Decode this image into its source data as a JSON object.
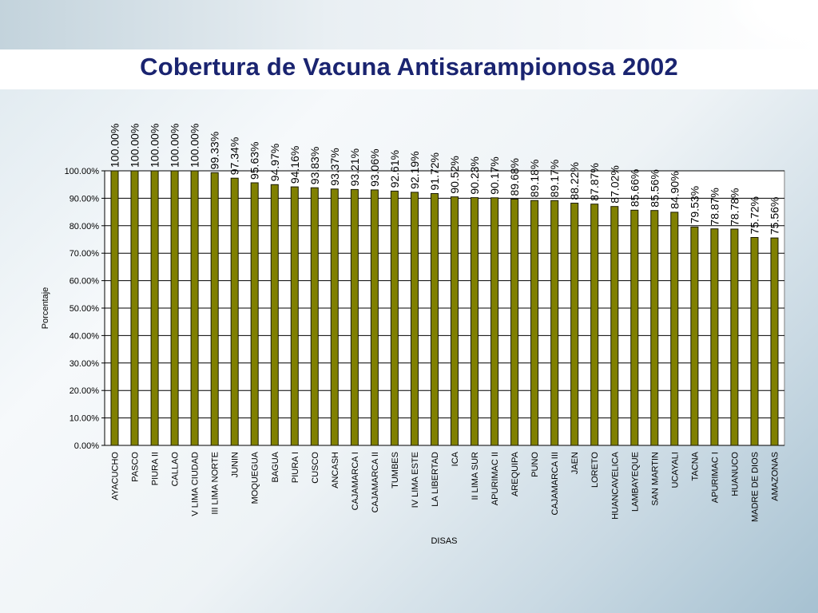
{
  "slide": {
    "title": "Cobertura de Vacuna Antisarampionosa 2002"
  },
  "colors": {
    "bar_fill": "#808000",
    "bar_stroke": "#1a1a00",
    "plot_bg": "#ffffff",
    "grid": "#000000",
    "title": "#1a2470"
  },
  "chart_data": {
    "type": "bar",
    "title": "Cobertura de Vacuna Antisarampionosa 2002",
    "xlabel": "DISAS",
    "ylabel": "Porcentaje",
    "ylim": [
      0,
      100
    ],
    "yticks": [
      "0.00%",
      "10.00%",
      "20.00%",
      "30.00%",
      "40.00%",
      "50.00%",
      "60.00%",
      "70.00%",
      "80.00%",
      "90.00%",
      "100.00%"
    ],
    "grid": true,
    "categories": [
      "AYACUCHO",
      "PASCO",
      "PIURA II",
      "CALLAO",
      "V LIMA CIUDAD",
      "III LIMA NORTE",
      "JUNIN",
      "MOQUEGUA",
      "BAGUA",
      "PIURA I",
      "CUSCO",
      "ANCASH",
      "CAJAMARCA I",
      "CAJAMARCA II",
      "TUMBES",
      "IV LIMA ESTE",
      "LA LIBERTAD",
      "ICA",
      "II LIMA SUR",
      "APURIMAC II",
      "AREQUIPA",
      "PUNO",
      "CAJAMARCA III",
      "JAEN",
      "LORETO",
      "HUANCAVELICA",
      "LAMBAYEQUE",
      "SAN MARTIN",
      "UCAYALI",
      "TACNA",
      "APURIMAC I",
      "HUANUCO",
      "MADRE DE DIOS",
      "AMAZONAS"
    ],
    "values": [
      100.0,
      100.0,
      100.0,
      100.0,
      100.0,
      99.33,
      97.34,
      95.63,
      94.97,
      94.16,
      93.83,
      93.37,
      93.21,
      93.06,
      92.61,
      92.19,
      91.72,
      90.52,
      90.23,
      90.17,
      89.68,
      89.18,
      89.17,
      88.22,
      87.87,
      87.02,
      85.66,
      85.56,
      84.9,
      79.53,
      78.87,
      78.78,
      75.72,
      75.56
    ],
    "data_labels": [
      "100.00%",
      "100.00%",
      "100.00%",
      "100.00%",
      "100.00%",
      "99.33%",
      "97.34%",
      "95.63%",
      "94.97%",
      "94.16%",
      "93.83%",
      "93.37%",
      "93.21%",
      "93.06%",
      "92.61%",
      "92.19%",
      "91.72%",
      "90.52%",
      "90.23%",
      "90.17%",
      "89.68%",
      "89.18%",
      "89.17%",
      "88.22%",
      "87.87%",
      "87.02%",
      "85.66%",
      "85.56%",
      "84.90%",
      "79.53%",
      "78.87%",
      "78.78%",
      "75.72%",
      "75.56%"
    ]
  }
}
